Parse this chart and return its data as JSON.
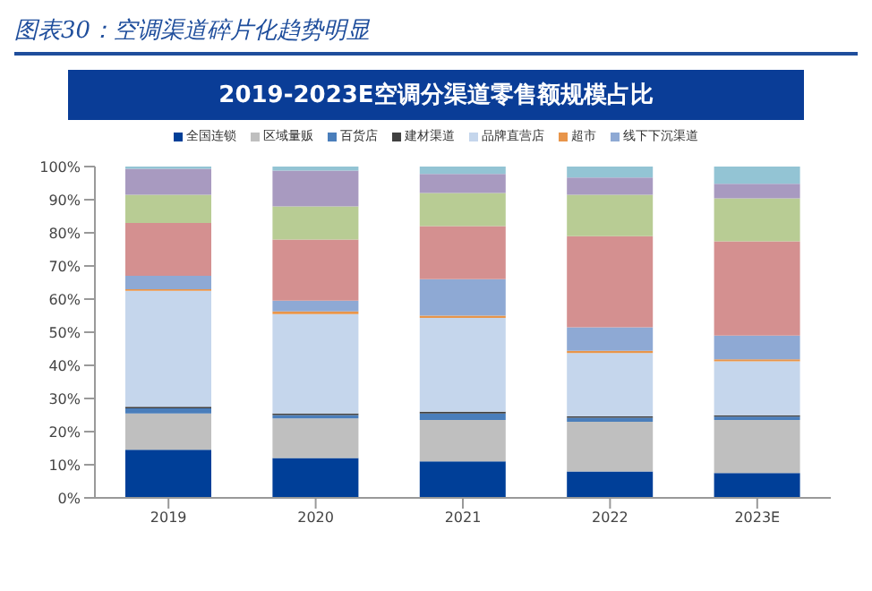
{
  "chart_data": {
    "type": "bar",
    "title": "图表30：空调渠道碎片化趋势明显",
    "subtitle": "2019-2023E空调分渠道零售额规模占比",
    "stacked": true,
    "legend": "top",
    "categories": [
      "2019",
      "2020",
      "2021",
      "2022",
      "2023E"
    ],
    "ylim": [
      0,
      100
    ],
    "yticks": [
      {
        "value": 0,
        "label": "0%"
      },
      {
        "value": 10,
        "label": "10%"
      },
      {
        "value": 20,
        "label": "20%"
      },
      {
        "value": 30,
        "label": "30%"
      },
      {
        "value": 40,
        "label": "40%"
      },
      {
        "value": 50,
        "label": "50%"
      },
      {
        "value": 60,
        "label": "60%"
      },
      {
        "value": 70,
        "label": "70%"
      },
      {
        "value": 80,
        "label": "80%"
      },
      {
        "value": 90,
        "label": "90%"
      },
      {
        "value": 100,
        "label": "100%"
      }
    ],
    "series": [
      {
        "name": "全国连锁",
        "color": "#003f98",
        "values": [
          14.5,
          12,
          11,
          8,
          7.5
        ]
      },
      {
        "name": "区域量贩",
        "color": "#bfbfbf",
        "values": [
          11,
          12,
          12.5,
          15,
          16
        ]
      },
      {
        "name": "百货店",
        "color": "#4a7ebb",
        "values": [
          1.5,
          1,
          2,
          1.2,
          1
        ]
      },
      {
        "name": "建材渠道",
        "color": "#404040",
        "values": [
          0.5,
          0.5,
          0.5,
          0.4,
          0.4
        ]
      },
      {
        "name": "品牌直营店",
        "color": "#c5d6ec",
        "values": [
          35,
          30,
          28.3,
          19.1,
          16.3
        ]
      },
      {
        "name": "超市",
        "color": "#e8954a",
        "values": [
          0.5,
          0.8,
          0.7,
          0.7,
          0.6
        ]
      },
      {
        "name": "线下下沉渠道",
        "color": "#8ea9d4",
        "values": [
          4,
          3.2,
          11,
          7.1,
          7.2
        ]
      },
      {
        "color": "#d49090",
        "values": [
          16,
          18.5,
          16,
          27.5,
          28.4
        ]
      },
      {
        "color": "#b8cc94",
        "values": [
          8.5,
          10,
          10,
          12.5,
          13
        ]
      },
      {
        "color": "#a89ac0",
        "values": [
          7.8,
          10.8,
          5.8,
          5.2,
          4.4
        ]
      },
      {
        "color": "#93c4d4",
        "values": [
          0.7,
          1.2,
          2.2,
          3.3,
          5.2
        ]
      }
    ]
  }
}
